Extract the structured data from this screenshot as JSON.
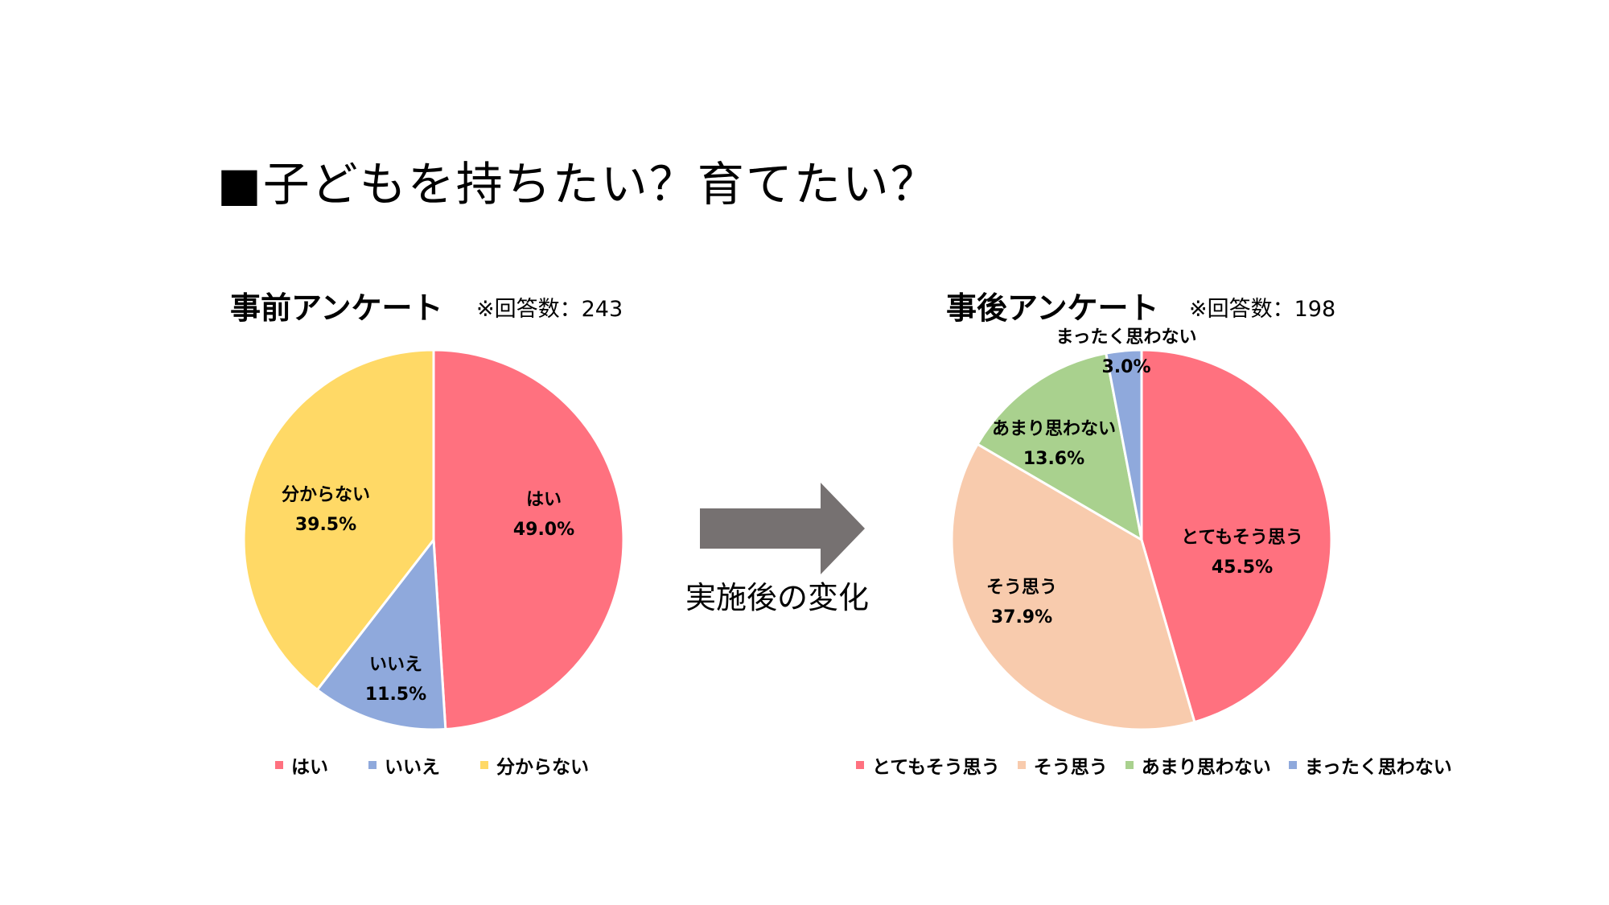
{
  "page": {
    "title": "■子どもを持ちたい？育てたい？",
    "transition_label": "実施後の変化"
  },
  "chart_data": [
    {
      "type": "pie",
      "title": "事前アンケート",
      "note": "※回答数：243",
      "slices": [
        {
          "label": "はい",
          "value": 49.0,
          "display": "49.0%",
          "color": "#FF717F"
        },
        {
          "label": "いいえ",
          "value": 11.5,
          "display": "11.5%",
          "color": "#8FA9DC"
        },
        {
          "label": "分からない",
          "value": 39.5,
          "display": "39.5%",
          "color": "#FFD966"
        }
      ],
      "legend": [
        "はい",
        "いいえ",
        "分からない"
      ],
      "legend_position": "bottom"
    },
    {
      "type": "pie",
      "title": "事後アンケート",
      "note": "※回答数：198",
      "slices": [
        {
          "label": "とてもそう思う",
          "value": 45.5,
          "display": "45.5%",
          "color": "#FF717F"
        },
        {
          "label": "そう思う",
          "value": 37.9,
          "display": "37.9%",
          "color": "#F8CBAD"
        },
        {
          "label": "あまり思わない",
          "value": 13.6,
          "display": "13.6%",
          "color": "#A9D18E"
        },
        {
          "label": "まったく思わない",
          "value": 3.0,
          "display": "3.0%",
          "color": "#8FA9DC"
        }
      ],
      "legend": [
        "とてもそう思う",
        "そう思う",
        "あまり思わない",
        "まったく思わない"
      ],
      "legend_position": "bottom"
    }
  ]
}
